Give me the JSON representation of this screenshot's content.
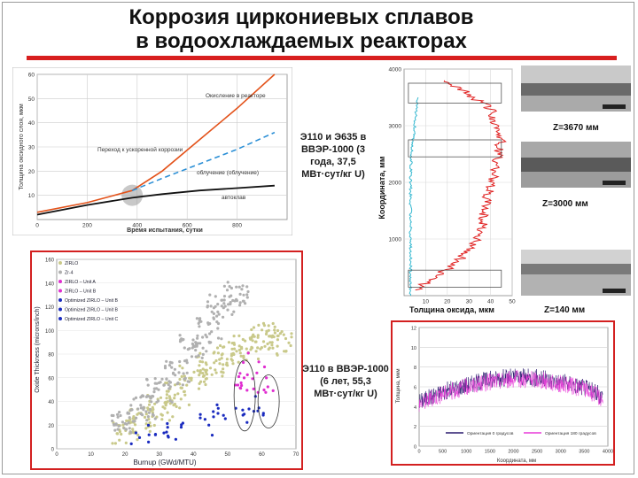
{
  "slide": {
    "title_line1": "Коррозия циркониевых сплавов",
    "title_line2": "в водоохлаждаемых реакторах"
  },
  "colors": {
    "accent_red": "#d81f1f",
    "orange": "#e3521a",
    "dashed_blue": "#2b8fd6",
    "cyan": "#35b8d0"
  },
  "panel_top_left": {
    "caption": "Э110 и Э635 в ВВЭР-1000 (3 года, 37,5 МВт·сут/кг U)",
    "annotations": [
      "Окисление в реакторе",
      "Переход к ускоренной коррозии",
      "облучение (облучение)",
      "автоклав"
    ],
    "ylabel": "Толщина оксидного слоя, мкм",
    "xlabel": "Время испытания, сутки",
    "chart_data": {
      "type": "line",
      "title": "",
      "xlabel": "Время испытания, сутки",
      "ylabel": "Толщина оксидного слоя, мкм",
      "xlim": [
        0,
        1000
      ],
      "ylim": [
        0,
        60
      ],
      "xticks": [
        "0",
        "200",
        "400",
        "600",
        "800"
      ],
      "yticks": [
        "10",
        "20",
        "30",
        "40",
        "50",
        "60"
      ],
      "series": [
        {
          "name": "Окисление в реакторе",
          "x": [
            0,
            200,
            380,
            500,
            650,
            800,
            950
          ],
          "y": [
            3,
            7,
            12,
            20,
            33,
            46,
            60
          ]
        },
        {
          "name": "облучение",
          "x": [
            380,
            500,
            650,
            800,
            950
          ],
          "y": [
            12,
            17,
            23,
            29,
            36
          ]
        },
        {
          "name": "автоклав",
          "x": [
            0,
            200,
            380,
            500,
            650,
            800,
            950
          ],
          "y": [
            2,
            6,
            9,
            10.5,
            12,
            13,
            14
          ]
        }
      ]
    }
  },
  "panel_profile": {
    "ylabel": "Координата, мм",
    "xlabel": "Толщина оксида, мкм",
    "chart_data": {
      "type": "line",
      "title": "",
      "xlabel": "Толщина оксида, мкм",
      "ylabel": "Координата, мм",
      "xlim": [
        0,
        50
      ],
      "ylim": [
        0,
        4000
      ],
      "xticks": [
        "10",
        "20",
        "30",
        "40",
        "50"
      ],
      "yticks": [
        "1000",
        "2000",
        "3000",
        "4000"
      ],
      "series": [
        {
          "name": "cyan",
          "x": [
            3,
            3,
            3,
            3,
            3,
            3.5,
            5,
            6
          ],
          "y": [
            0,
            500,
            1000,
            1500,
            2000,
            2500,
            3000,
            3500
          ]
        },
        {
          "name": "red",
          "x": [
            5,
            25,
            36,
            38,
            42,
            45,
            40,
            20
          ],
          "y": [
            100,
            600,
            1100,
            1700,
            2200,
            2800,
            3300,
            3800
          ]
        }
      ]
    }
  },
  "micrographs": [
    {
      "label": "Z=3670 мм"
    },
    {
      "label": "Z=3000 мм"
    },
    {
      "label": "Z=140 мм"
    }
  ],
  "panel_scatter": {
    "legend": [
      "ZIRLO",
      "Zr-4",
      "ZIRLO – Unit A",
      "ZIRLO – Unit B",
      "Optimized ZIRLO – Unit B",
      "Optimized ZIRLO – Unit B",
      "Optimized ZIRLO – Unit C"
    ],
    "ylabel": "Oxide Thickness (microns/inch)",
    "xlabel": "Burnup (GWd/MTU)",
    "chart_data": {
      "type": "scatter",
      "title": "",
      "xlabel": "Burnup (GWd/MTU)",
      "ylabel": "Oxide Thickness (microns/inch)",
      "xlim": [
        0,
        70
      ],
      "ylim": [
        0,
        160
      ],
      "xticks": [
        "0",
        "10",
        "20",
        "30",
        "40",
        "50",
        "60",
        "70"
      ],
      "yticks": [
        "0",
        "20",
        "40",
        "60",
        "80",
        "100",
        "120",
        "140",
        "160"
      ],
      "series": [
        {
          "name": "ZIRLO",
          "x": [
            20,
            25,
            30,
            35,
            40,
            45,
            50,
            55,
            60,
            65
          ],
          "y": [
            15,
            25,
            35,
            45,
            60,
            70,
            80,
            85,
            95,
            90
          ]
        },
        {
          "name": "Zr-4",
          "x": [
            20,
            25,
            30,
            35,
            40,
            45,
            48,
            52
          ],
          "y": [
            20,
            35,
            50,
            65,
            85,
            100,
            120,
            130
          ]
        },
        {
          "name": "ZIRLO – Unit A",
          "x": [
            55,
            57,
            58,
            60
          ],
          "y": [
            50,
            60,
            70,
            55
          ]
        },
        {
          "name": "Optimized ZIRLO – Unit C",
          "x": [
            25,
            30,
            35,
            45,
            48,
            55,
            58
          ],
          "y": [
            12,
            15,
            18,
            22,
            28,
            30,
            35
          ]
        }
      ]
    }
  },
  "panel_bottom_right": {
    "caption": "Э110 в ВВЭР-1000 (6 лет, 55,3 МВт·сут/кг U)",
    "ylabel": "Толщина, мкм",
    "xlabel": "Координата, мм",
    "legend": [
      "Ориентация 0 градусов",
      "Ориентация 180 градусов"
    ],
    "chart_data": {
      "type": "line",
      "title": "",
      "xlabel": "Координата, мм",
      "ylabel": "Толщина, мкм",
      "xlim": [
        0,
        4000
      ],
      "ylim": [
        0,
        12
      ],
      "xticks": [
        "0",
        "500",
        "1000",
        "1500",
        "2000",
        "2500",
        "3000",
        "3500",
        "4000"
      ],
      "yticks": [
        "0",
        "2",
        "4",
        "6",
        "8",
        "10",
        "12"
      ],
      "series": [
        {
          "name": "Ориентация 0 градусов",
          "x": [
            0,
            500,
            1000,
            1500,
            2000,
            2500,
            3000,
            3500,
            3900
          ],
          "y": [
            4.5,
            5.5,
            6.2,
            6.8,
            7.0,
            6.9,
            6.5,
            6.0,
            5.0
          ]
        },
        {
          "name": "Ориентация 180 градусов",
          "x": [
            0,
            500,
            1000,
            1500,
            2000,
            2500,
            3000,
            3500,
            3900
          ],
          "y": [
            4.3,
            5.3,
            6.0,
            6.5,
            6.8,
            6.7,
            6.3,
            5.8,
            4.8
          ]
        }
      ]
    }
  }
}
